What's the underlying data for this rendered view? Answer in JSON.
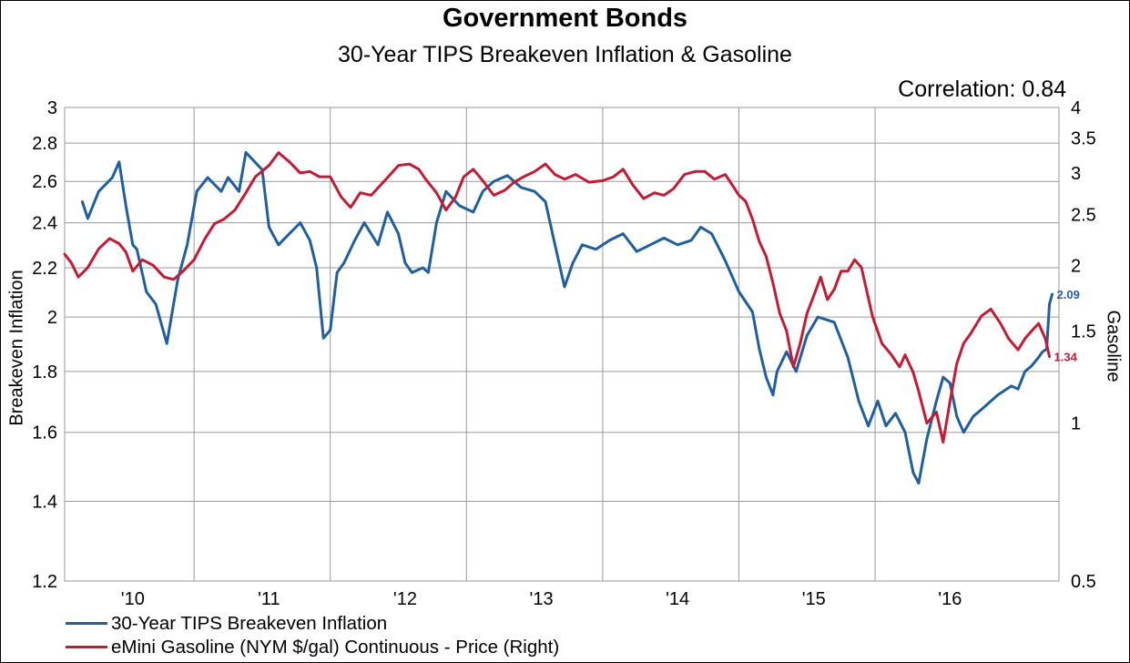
{
  "chart_data": {
    "type": "line",
    "title": "Government Bonds",
    "subtitle": "30-Year TIPS Breakeven Inflation & Gasoline",
    "annotation": "Correlation: 0.84",
    "ylabel_left": "Breakeven Inflation",
    "ylabel_right": "Gasoline",
    "x_tick_labels": [
      "'10",
      "'11",
      "'12",
      "'13",
      "'14",
      "'15",
      "'16"
    ],
    "xlim": [
      2009.55,
      2016.85
    ],
    "y_left": {
      "ticks": [
        3,
        2.8,
        2.6,
        2.4,
        2.2,
        2,
        1.8,
        1.6,
        1.4,
        1.2
      ],
      "ylim": [
        1.2,
        3
      ],
      "scale": "log"
    },
    "y_right": {
      "ticks": [
        4,
        3.5,
        3,
        2.5,
        2,
        1.5,
        1,
        0.5
      ],
      "ylim": [
        0.5,
        4
      ],
      "scale": "log"
    },
    "grid": true,
    "legend_position": "bottom-left",
    "series": [
      {
        "name": "30-Year TIPS  Breakeven Inflation",
        "axis": "left",
        "color": "#1f5fa0",
        "end_label": "2.09",
        "x": [
          2009.68,
          2009.72,
          2009.8,
          2009.9,
          2009.95,
          2010.0,
          2010.05,
          2010.08,
          2010.15,
          2010.22,
          2010.3,
          2010.38,
          2010.45,
          2010.52,
          2010.6,
          2010.7,
          2010.75,
          2010.83,
          2010.88,
          2011.0,
          2011.05,
          2011.12,
          2011.2,
          2011.28,
          2011.35,
          2011.4,
          2011.45,
          2011.5,
          2011.55,
          2011.6,
          2011.68,
          2011.75,
          2011.85,
          2011.92,
          2012.0,
          2012.05,
          2012.1,
          2012.18,
          2012.22,
          2012.28,
          2012.35,
          2012.45,
          2012.55,
          2012.62,
          2012.7,
          2012.8,
          2012.9,
          2013.0,
          2013.08,
          2013.15,
          2013.22,
          2013.28,
          2013.35,
          2013.45,
          2013.55,
          2013.65,
          2013.75,
          2013.85,
          2013.95,
          2014.05,
          2014.15,
          2014.22,
          2014.3,
          2014.4,
          2014.5,
          2014.6,
          2014.65,
          2014.7,
          2014.75,
          2014.78,
          2014.85,
          2014.92,
          2015.0,
          2015.08,
          2015.2,
          2015.3,
          2015.38,
          2015.45,
          2015.52,
          2015.58,
          2015.65,
          2015.72,
          2015.78,
          2015.82,
          2015.88,
          2015.95,
          2016.0,
          2016.05,
          2016.1,
          2016.15,
          2016.22,
          2016.3,
          2016.4,
          2016.5,
          2016.55,
          2016.6,
          2016.65,
          2016.7,
          2016.73,
          2016.76,
          2016.78,
          2016.8
        ],
        "y": [
          2.5,
          2.42,
          2.55,
          2.62,
          2.7,
          2.48,
          2.3,
          2.28,
          2.1,
          2.05,
          1.9,
          2.15,
          2.3,
          2.55,
          2.62,
          2.55,
          2.62,
          2.55,
          2.75,
          2.66,
          2.38,
          2.3,
          2.35,
          2.4,
          2.32,
          2.2,
          1.92,
          1.95,
          2.18,
          2.22,
          2.32,
          2.4,
          2.3,
          2.45,
          2.35,
          2.22,
          2.18,
          2.2,
          2.18,
          2.4,
          2.55,
          2.48,
          2.45,
          2.55,
          2.6,
          2.63,
          2.57,
          2.55,
          2.5,
          2.3,
          2.12,
          2.22,
          2.3,
          2.28,
          2.32,
          2.35,
          2.27,
          2.3,
          2.33,
          2.3,
          2.32,
          2.38,
          2.35,
          2.23,
          2.1,
          2.02,
          1.88,
          1.78,
          1.72,
          1.8,
          1.87,
          1.8,
          1.93,
          2.0,
          1.98,
          1.85,
          1.7,
          1.62,
          1.7,
          1.62,
          1.66,
          1.6,
          1.48,
          1.45,
          1.58,
          1.7,
          1.78,
          1.76,
          1.65,
          1.6,
          1.65,
          1.68,
          1.72,
          1.75,
          1.74,
          1.8,
          1.82,
          1.85,
          1.87,
          1.88,
          2.05,
          2.09
        ]
      },
      {
        "name": "eMini Gasoline (NYM $/gal) Continuous - Price  (Right)",
        "axis": "right",
        "color": "#c41a33",
        "end_label": "1.34",
        "x": [
          2009.55,
          2009.6,
          2009.65,
          2009.72,
          2009.8,
          2009.88,
          2009.95,
          2010.0,
          2010.05,
          2010.12,
          2010.2,
          2010.28,
          2010.35,
          2010.42,
          2010.5,
          2010.58,
          2010.65,
          2010.72,
          2010.8,
          2010.88,
          2010.95,
          2011.05,
          2011.12,
          2011.2,
          2011.28,
          2011.35,
          2011.42,
          2011.5,
          2011.58,
          2011.65,
          2011.72,
          2011.8,
          2011.9,
          2012.0,
          2012.08,
          2012.15,
          2012.2,
          2012.28,
          2012.35,
          2012.42,
          2012.48,
          2012.55,
          2012.62,
          2012.7,
          2012.78,
          2012.85,
          2012.92,
          2013.0,
          2013.08,
          2013.15,
          2013.22,
          2013.3,
          2013.4,
          2013.5,
          2013.58,
          2013.65,
          2013.72,
          2013.8,
          2013.88,
          2013.95,
          2014.02,
          2014.1,
          2014.18,
          2014.25,
          2014.32,
          2014.4,
          2014.45,
          2014.5,
          2014.55,
          2014.6,
          2014.65,
          2014.7,
          2014.75,
          2014.8,
          2014.85,
          2014.9,
          2014.95,
          2015.0,
          2015.05,
          2015.1,
          2015.15,
          2015.2,
          2015.25,
          2015.3,
          2015.35,
          2015.4,
          2015.48,
          2015.55,
          2015.62,
          2015.68,
          2015.72,
          2015.78,
          2015.82,
          2015.88,
          2015.95,
          2016.0,
          2016.05,
          2016.1,
          2016.15,
          2016.2,
          2016.28,
          2016.35,
          2016.42,
          2016.48,
          2016.55,
          2016.6,
          2016.65,
          2016.7,
          2016.75,
          2016.78
        ],
        "y": [
          2.1,
          2.02,
          1.9,
          1.98,
          2.15,
          2.25,
          2.2,
          2.12,
          1.95,
          2.05,
          2.0,
          1.9,
          1.88,
          1.95,
          2.05,
          2.25,
          2.4,
          2.45,
          2.55,
          2.75,
          2.95,
          3.1,
          3.28,
          3.15,
          3.0,
          3.02,
          2.95,
          2.95,
          2.7,
          2.58,
          2.75,
          2.72,
          2.9,
          3.1,
          3.12,
          3.05,
          2.92,
          2.75,
          2.55,
          2.7,
          2.95,
          3.05,
          2.9,
          2.72,
          2.78,
          2.88,
          2.95,
          3.02,
          3.12,
          2.98,
          2.92,
          2.98,
          2.88,
          2.9,
          2.95,
          3.05,
          2.85,
          2.68,
          2.75,
          2.72,
          2.8,
          2.98,
          3.02,
          3.02,
          2.92,
          2.98,
          2.85,
          2.72,
          2.65,
          2.45,
          2.22,
          2.08,
          1.85,
          1.62,
          1.5,
          1.28,
          1.42,
          1.62,
          1.75,
          1.9,
          1.72,
          1.8,
          1.95,
          1.95,
          2.05,
          1.98,
          1.6,
          1.42,
          1.35,
          1.28,
          1.35,
          1.25,
          1.15,
          1.0,
          1.05,
          0.92,
          1.1,
          1.3,
          1.42,
          1.48,
          1.6,
          1.65,
          1.55,
          1.45,
          1.38,
          1.45,
          1.5,
          1.55,
          1.45,
          1.34
        ]
      }
    ]
  }
}
